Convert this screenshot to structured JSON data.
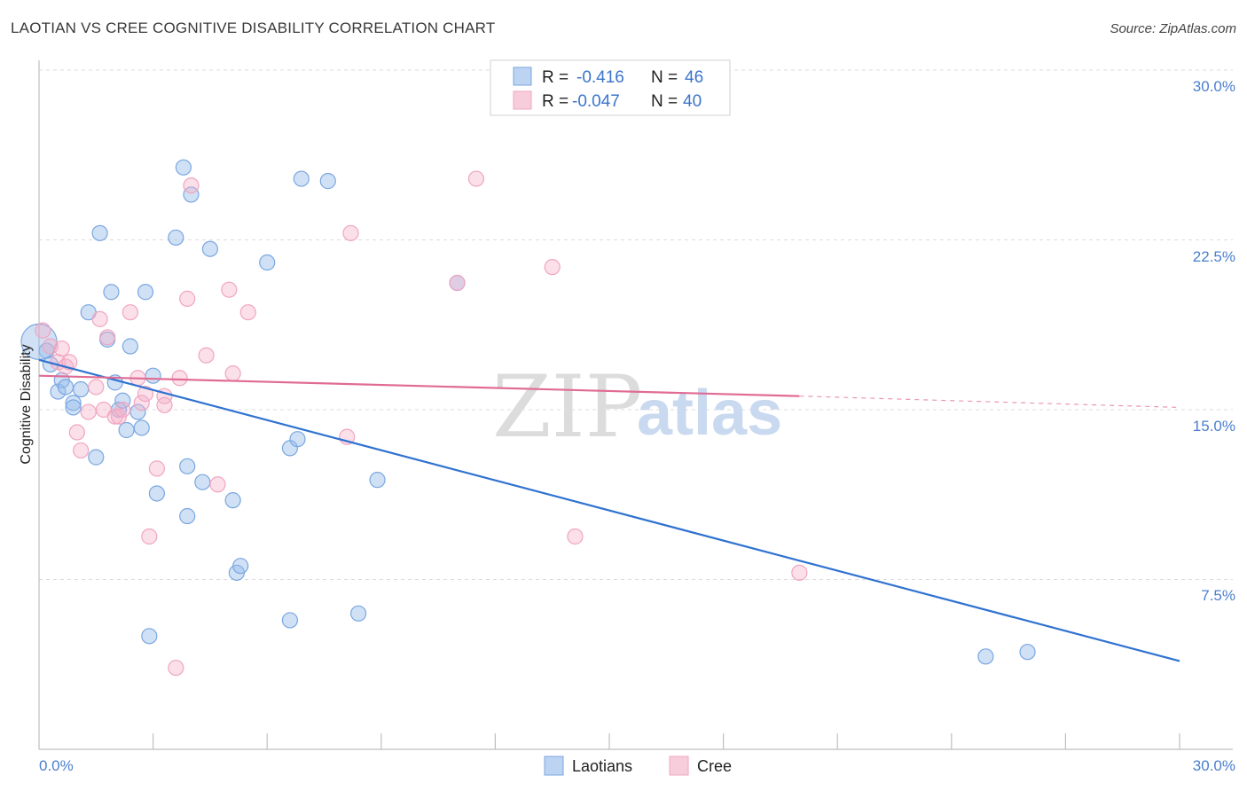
{
  "title": "LAOTIAN VS CREE COGNITIVE DISABILITY CORRELATION CHART",
  "source": "Source: ZipAtlas.com",
  "chart_data": {
    "type": "scatter",
    "xlabel": "",
    "ylabel": "Cognitive Disability",
    "xlim": [
      0,
      30
    ],
    "ylim": [
      0,
      30
    ],
    "x_tick_labels": [
      "0.0%",
      "30.0%"
    ],
    "y_ticks": [
      7.5,
      15.0,
      22.5,
      30.0
    ],
    "y_tick_labels": [
      "7.5%",
      "15.0%",
      "22.5%",
      "30.0%"
    ],
    "grid": true,
    "watermark": [
      "ZIP",
      "atlas"
    ],
    "legend_top": [
      {
        "r_label": "R =",
        "r_value": "-0.416",
        "n_label": "N =",
        "n_value": "46"
      },
      {
        "r_label": "R =",
        "r_value": "-0.047",
        "n_label": "N =",
        "n_value": "40"
      }
    ],
    "series": [
      {
        "name": "Laotians",
        "color": "#7aa7e0",
        "line_color": "#2f72d0",
        "trend": {
          "x0": 0,
          "y0": 17.2,
          "x1": 30,
          "y1": 3.9
        },
        "points": [
          [
            0.2,
            17.6
          ],
          [
            0.3,
            17.0
          ],
          [
            0.5,
            15.8
          ],
          [
            0.6,
            16.3
          ],
          [
            0.7,
            16.0
          ],
          [
            0.9,
            15.3
          ],
          [
            0.9,
            15.1
          ],
          [
            1.1,
            15.9
          ],
          [
            1.3,
            19.3
          ],
          [
            1.5,
            12.9
          ],
          [
            1.6,
            22.8
          ],
          [
            1.8,
            18.1
          ],
          [
            1.9,
            20.2
          ],
          [
            2.0,
            16.2
          ],
          [
            2.1,
            15.0
          ],
          [
            2.2,
            15.4
          ],
          [
            2.3,
            14.1
          ],
          [
            2.4,
            17.8
          ],
          [
            2.6,
            14.9
          ],
          [
            2.7,
            14.2
          ],
          [
            2.8,
            20.2
          ],
          [
            3.0,
            16.5
          ],
          [
            3.1,
            11.3
          ],
          [
            3.6,
            22.6
          ],
          [
            3.8,
            25.7
          ],
          [
            3.9,
            10.3
          ],
          [
            3.9,
            12.5
          ],
          [
            4.0,
            24.5
          ],
          [
            4.3,
            11.8
          ],
          [
            4.5,
            22.1
          ],
          [
            5.1,
            11.0
          ],
          [
            5.2,
            7.8
          ],
          [
            5.3,
            8.1
          ],
          [
            6.0,
            21.5
          ],
          [
            6.6,
            13.3
          ],
          [
            6.8,
            13.7
          ],
          [
            6.9,
            25.2
          ],
          [
            7.6,
            25.1
          ],
          [
            8.9,
            11.9
          ],
          [
            11.0,
            20.6
          ],
          [
            24.9,
            4.1
          ],
          [
            26.0,
            4.3
          ],
          [
            2.9,
            5.0
          ],
          [
            6.6,
            5.7
          ],
          [
            8.4,
            6.0
          ],
          [
            0.0,
            18.0
          ]
        ]
      },
      {
        "name": "Cree",
        "color": "#f0a6c0",
        "line_color": "#e06b94",
        "trend": {
          "x0": 0,
          "y0": 16.5,
          "x1": 20,
          "y1": 15.6
        },
        "trend_dashed_to": {
          "x": 30,
          "y": 15.1
        },
        "points": [
          [
            0.1,
            18.5
          ],
          [
            0.3,
            17.8
          ],
          [
            0.5,
            17.1
          ],
          [
            0.6,
            17.7
          ],
          [
            0.7,
            16.9
          ],
          [
            0.8,
            17.1
          ],
          [
            1.0,
            14.0
          ],
          [
            1.1,
            13.2
          ],
          [
            1.3,
            14.9
          ],
          [
            1.5,
            16.0
          ],
          [
            1.6,
            19.0
          ],
          [
            1.7,
            15.0
          ],
          [
            1.8,
            18.2
          ],
          [
            2.0,
            14.7
          ],
          [
            2.1,
            14.7
          ],
          [
            2.2,
            15.0
          ],
          [
            2.4,
            19.3
          ],
          [
            2.6,
            16.4
          ],
          [
            2.7,
            15.3
          ],
          [
            2.8,
            15.7
          ],
          [
            2.9,
            9.4
          ],
          [
            3.1,
            12.4
          ],
          [
            3.3,
            15.6
          ],
          [
            3.3,
            15.2
          ],
          [
            3.7,
            16.4
          ],
          [
            3.9,
            19.9
          ],
          [
            4.0,
            24.9
          ],
          [
            4.4,
            17.4
          ],
          [
            4.7,
            11.7
          ],
          [
            5.0,
            20.3
          ],
          [
            5.1,
            16.6
          ],
          [
            5.5,
            19.3
          ],
          [
            8.1,
            13.8
          ],
          [
            8.2,
            22.8
          ],
          [
            11.0,
            20.6
          ],
          [
            11.5,
            25.2
          ],
          [
            13.5,
            21.3
          ],
          [
            14.1,
            9.4
          ],
          [
            20.0,
            7.8
          ],
          [
            3.6,
            3.6
          ]
        ]
      }
    ]
  }
}
